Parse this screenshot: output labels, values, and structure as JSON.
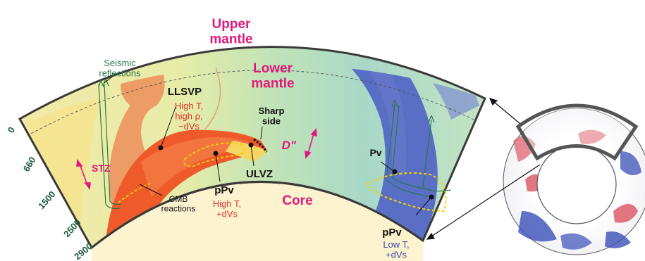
{
  "regions": {
    "upper_mantle": "Upper\nmantle",
    "lower_mantle": "Lower\nmantle",
    "core": "Core",
    "d_double_prime": "D\""
  },
  "labels": {
    "seismic_reflections": "Seismic\nreflections",
    "llsvp_title": "LLSVP",
    "llsvp_props": "High T,\nhigh ρ,\n−dVs",
    "sharp_side": "Sharp\nside",
    "stz": "STZ",
    "ppv_left_title": "pPv",
    "ppv_left_props": "High T,\n+dVs",
    "ulvz": "ULVZ",
    "cmb_reactions": "CMB\nreactions",
    "pv": "Pv",
    "ppv_right_title": "pPv",
    "ppv_right_props": "Low T,\n+dVs"
  },
  "depth_ticks": [
    "0",
    "660",
    "1500",
    "2500",
    "2900"
  ],
  "colors": {
    "magenta": "#e0197d",
    "red_text": "#e0302a",
    "blue_text": "#3a4aa8",
    "depth_green": "#1e5c3a",
    "ray_green": "#2a7a4a",
    "outline": "#3a3a3a",
    "core_fill": "#fdf3cf",
    "hot": "#ef5a2a",
    "cold": "#4a5bc4"
  }
}
